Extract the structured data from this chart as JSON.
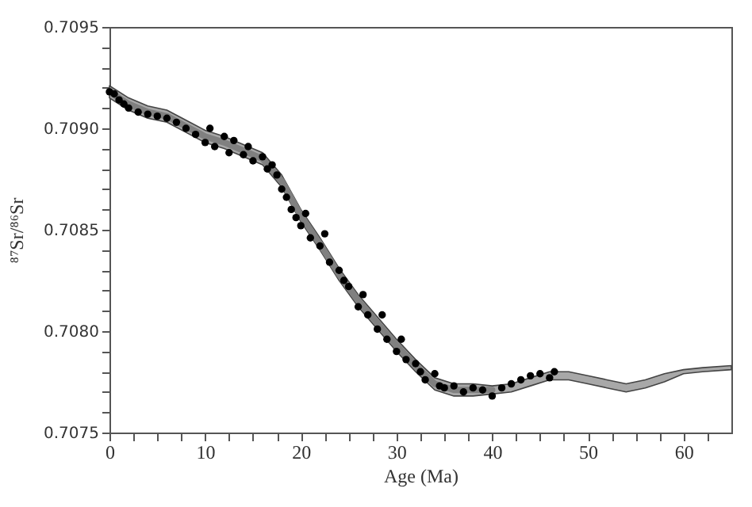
{
  "chart_data": {
    "type": "scatter",
    "xlabel": "Age (Ma)",
    "ylabel": "⁸⁷Sr/⁸⁶Sr",
    "xlim": [
      0,
      65
    ],
    "ylim": [
      0.7075,
      0.7095
    ],
    "xticks": [
      0,
      {
        "value": 2.5,
        "label": null
      },
      {
        "value": 5,
        "label": null
      },
      {
        "value": 7.5,
        "label": null
      },
      10,
      {
        "value": 12.5,
        "label": null
      },
      {
        "value": 15,
        "label": null
      },
      {
        "value": 17.5,
        "label": null
      },
      20,
      {
        "value": 22.5,
        "label": null
      },
      {
        "value": 25,
        "label": null
      },
      {
        "value": 27.5,
        "label": null
      },
      30,
      {
        "value": 32.5,
        "label": null
      },
      {
        "value": 35,
        "label": null
      },
      {
        "value": 37.5,
        "label": null
      },
      40,
      {
        "value": 42.5,
        "label": null
      },
      {
        "value": 45,
        "label": null
      },
      {
        "value": 47.5,
        "label": null
      },
      50,
      {
        "value": 52.5,
        "label": null
      },
      {
        "value": 55,
        "label": null
      },
      {
        "value": 57.5,
        "label": null
      },
      60,
      {
        "value": 62.5,
        "label": null
      }
    ],
    "yticks": [
      0.7075,
      {
        "value": 0.7076,
        "label": null
      },
      {
        "value": 0.7077,
        "label": null
      },
      {
        "value": 0.7078,
        "label": null
      },
      {
        "value": 0.7079,
        "label": null
      },
      {
        "value": 0.708,
        "label": "0.7080"
      },
      {
        "value": 0.7081,
        "label": null
      },
      {
        "value": 0.7082,
        "label": null
      },
      {
        "value": 0.7083,
        "label": null
      },
      {
        "value": 0.7084,
        "label": null
      },
      0.7085,
      {
        "value": 0.7086,
        "label": null
      },
      {
        "value": 0.7087,
        "label": null
      },
      {
        "value": 0.7088,
        "label": null
      },
      {
        "value": 0.7089,
        "label": null
      },
      {
        "value": 0.709,
        "label": "0.7090"
      },
      {
        "value": 0.7091,
        "label": null
      },
      {
        "value": 0.7092,
        "label": null
      },
      {
        "value": 0.7093,
        "label": null
      },
      {
        "value": 0.7094,
        "label": null
      },
      0.7095
    ],
    "grid": false,
    "series": [
      {
        "type": "line",
        "color": "#808080",
        "line_style": "solid",
        "marker": "none",
        "x": [
          0,
          2,
          4,
          6,
          8,
          10,
          12,
          14,
          16,
          18,
          20,
          22,
          24,
          26,
          28,
          30,
          32,
          34,
          36,
          38,
          40,
          42,
          44,
          46,
          48,
          50,
          52,
          54,
          56,
          58,
          60,
          62,
          65
        ],
        "values": [
          0.70918,
          0.70912,
          0.70908,
          0.70906,
          0.70901,
          0.70896,
          0.70893,
          0.70889,
          0.70885,
          0.70874,
          0.70857,
          0.70843,
          0.70828,
          0.70815,
          0.70804,
          0.70793,
          0.70783,
          0.70774,
          0.70771,
          0.70771,
          0.70771,
          null,
          null,
          null,
          null,
          null,
          null,
          null,
          null,
          null,
          null,
          null,
          null
        ],
        "lower": [
          0.70915,
          0.70909,
          0.70905,
          0.70903,
          0.70898,
          0.70893,
          0.7089,
          0.70886,
          0.70882,
          0.70871,
          0.70854,
          0.7084,
          0.70825,
          0.70812,
          0.70801,
          0.7079,
          0.7078,
          0.70771,
          0.70768,
          0.70768,
          0.70769,
          0.7077,
          0.70773,
          0.70776,
          0.70776,
          0.70774,
          0.70772,
          0.7077,
          0.70772,
          0.70775,
          0.70779,
          0.7078,
          0.70781
        ],
        "upper": [
          0.70921,
          0.70915,
          0.70911,
          0.70909,
          0.70904,
          0.70899,
          0.70896,
          0.70892,
          0.70888,
          0.70877,
          0.7086,
          0.70846,
          0.70831,
          0.70818,
          0.70807,
          0.70796,
          0.70786,
          0.70777,
          0.70774,
          0.70774,
          0.70773,
          0.70774,
          0.70777,
          0.7078,
          0.7078,
          0.70778,
          0.70776,
          0.70774,
          0.70776,
          0.70779,
          0.70781,
          0.70782,
          0.70783
        ]
      },
      {
        "type": "scatter",
        "color": "#000000",
        "marker": "circle",
        "x": [
          0,
          0.5,
          1,
          1.5,
          2,
          3,
          4,
          5,
          6,
          7,
          8,
          9,
          10,
          10.5,
          11,
          12,
          12.5,
          13,
          14,
          14.5,
          15,
          16,
          16.5,
          17,
          17.5,
          18,
          18.5,
          19,
          19.5,
          20,
          20.5,
          21,
          22,
          22.5,
          23,
          24,
          24.5,
          25,
          26,
          26.5,
          27,
          28,
          28.5,
          29,
          30,
          30.5,
          31,
          32,
          32.5,
          33,
          34,
          34.5,
          35,
          36,
          37,
          38,
          39,
          40,
          41,
          42,
          43,
          44,
          45,
          46,
          46.5
        ],
        "values": [
          0.70918,
          0.70917,
          0.70914,
          0.70912,
          0.7091,
          0.70908,
          0.70907,
          0.70906,
          0.70905,
          0.70903,
          0.709,
          0.70897,
          0.70893,
          0.709,
          0.70891,
          0.70896,
          0.70888,
          0.70894,
          0.70887,
          0.70891,
          0.70884,
          0.70886,
          0.7088,
          0.70882,
          0.70877,
          0.7087,
          0.70866,
          0.7086,
          0.70856,
          0.70852,
          0.70858,
          0.70846,
          0.70842,
          0.70848,
          0.70834,
          0.7083,
          0.70825,
          0.70822,
          0.70812,
          0.70818,
          0.70808,
          0.70801,
          0.70808,
          0.70796,
          0.7079,
          0.70796,
          0.70786,
          0.70784,
          0.7078,
          0.70776,
          0.70779,
          0.70773,
          0.70772,
          0.70773,
          0.7077,
          0.70772,
          0.70771,
          0.70768,
          0.70772,
          0.70774,
          0.70776,
          0.70778,
          0.70779,
          0.70777,
          0.7078
        ]
      }
    ]
  }
}
